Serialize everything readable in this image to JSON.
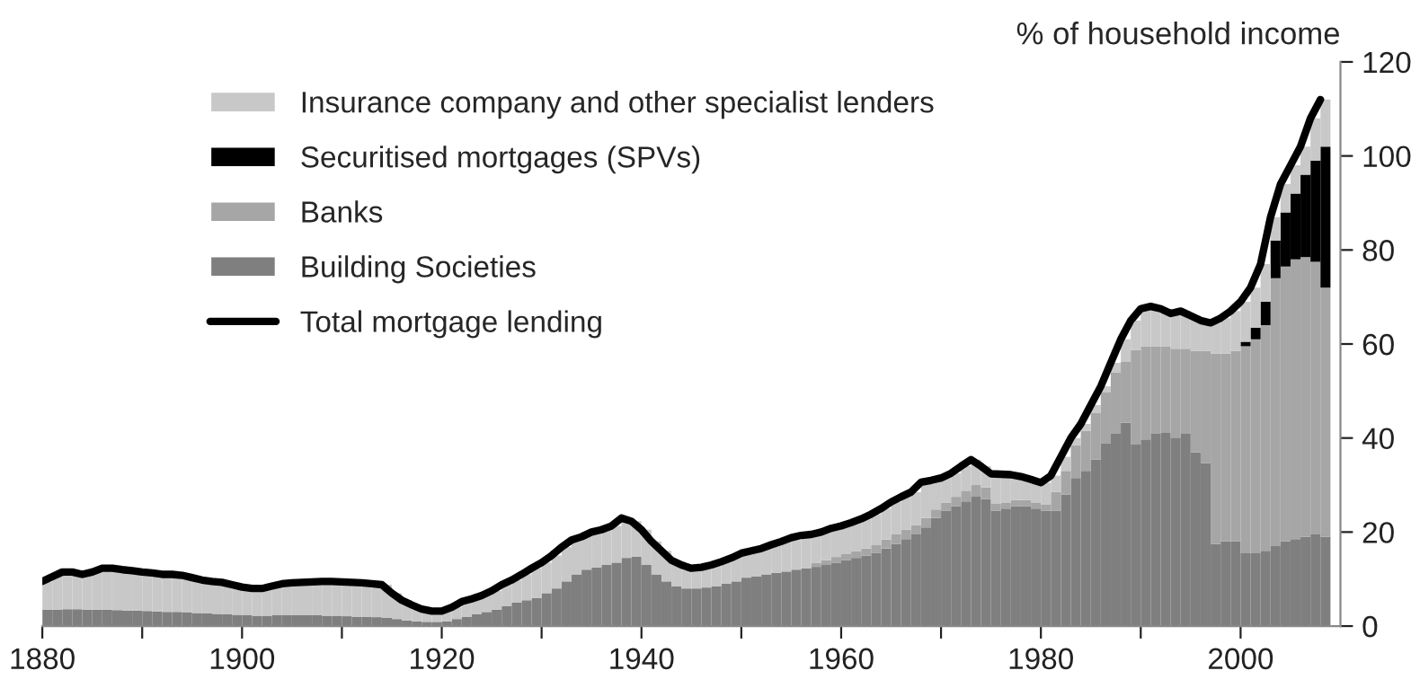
{
  "chart_data": {
    "type": "bar",
    "stacked": true,
    "ylabel": "% of household income",
    "x": [
      1880,
      1881,
      1882,
      1883,
      1884,
      1885,
      1886,
      1887,
      1888,
      1889,
      1890,
      1891,
      1892,
      1893,
      1894,
      1895,
      1896,
      1897,
      1898,
      1899,
      1900,
      1901,
      1902,
      1903,
      1904,
      1905,
      1906,
      1907,
      1908,
      1909,
      1910,
      1911,
      1912,
      1913,
      1914,
      1915,
      1916,
      1917,
      1918,
      1919,
      1920,
      1921,
      1922,
      1923,
      1924,
      1925,
      1926,
      1927,
      1928,
      1929,
      1930,
      1931,
      1932,
      1933,
      1934,
      1935,
      1936,
      1937,
      1938,
      1939,
      1940,
      1941,
      1942,
      1943,
      1944,
      1945,
      1946,
      1947,
      1948,
      1949,
      1950,
      1951,
      1952,
      1953,
      1954,
      1955,
      1956,
      1957,
      1958,
      1959,
      1960,
      1961,
      1962,
      1963,
      1964,
      1965,
      1966,
      1967,
      1968,
      1969,
      1970,
      1971,
      1972,
      1973,
      1974,
      1975,
      1976,
      1977,
      1978,
      1979,
      1980,
      1981,
      1982,
      1983,
      1984,
      1985,
      1986,
      1987,
      1988,
      1989,
      1990,
      1991,
      1992,
      1993,
      1994,
      1995,
      1996,
      1997,
      1998,
      1999,
      2000,
      2001,
      2002,
      2003,
      2004,
      2005,
      2006,
      2007,
      2008
    ],
    "series": [
      {
        "name": "Building Societies",
        "color": "#7f7f7f",
        "values": [
          3.5,
          3.5,
          3.6,
          3.6,
          3.5,
          3.5,
          3.5,
          3.4,
          3.3,
          3.3,
          3.2,
          3.1,
          3,
          3,
          2.9,
          2.8,
          2.7,
          2.6,
          2.5,
          2.4,
          2.3,
          2.2,
          2.2,
          2.3,
          2.3,
          2.3,
          2.3,
          2.3,
          2.2,
          2.2,
          2.1,
          2,
          2,
          1.9,
          1.8,
          1.5,
          1.2,
          1,
          0.9,
          0.9,
          1,
          1.5,
          2,
          2.5,
          3,
          3.5,
          4.3,
          5,
          5.5,
          6,
          7,
          8,
          9.5,
          11,
          12,
          12.5,
          13,
          13.5,
          14.5,
          14.8,
          13,
          11,
          9.5,
          8.5,
          8,
          8,
          8.2,
          8.5,
          9,
          9.5,
          10.3,
          10.6,
          11,
          11.3,
          11.6,
          12,
          12.3,
          12.6,
          13,
          13.5,
          14,
          14.5,
          15,
          15.5,
          16.5,
          17.5,
          18.5,
          19.5,
          21,
          23,
          24.5,
          25.5,
          26.5,
          27.5,
          27,
          24.5,
          25,
          25.5,
          25.5,
          25,
          24.5,
          24.5,
          28,
          31.5,
          33,
          35.4,
          38.8,
          40.9,
          43.3,
          38.6,
          39.7,
          40.9,
          41.1,
          40.1,
          40.9,
          37,
          34.7,
          17.5,
          18,
          18,
          15.5,
          15.5,
          16,
          17,
          18,
          18.5,
          19,
          19.5,
          19
        ]
      },
      {
        "name": "Banks",
        "color": "#a6a6a6",
        "values": [
          0,
          0,
          0,
          0,
          0,
          0,
          0,
          0,
          0,
          0,
          0,
          0,
          0,
          0,
          0,
          0,
          0,
          0,
          0,
          0,
          0,
          0,
          0,
          0,
          0,
          0,
          0,
          0,
          0,
          0,
          0,
          0,
          0,
          0,
          0,
          0,
          0,
          0,
          0,
          0,
          0,
          0,
          0,
          0,
          0,
          0,
          0,
          0,
          0,
          0,
          0,
          0,
          0,
          0,
          0,
          0,
          0,
          0,
          0,
          0,
          0,
          0,
          0,
          0,
          0,
          0,
          0,
          0,
          0,
          0,
          0,
          0,
          0,
          0,
          0,
          0,
          0,
          0.8,
          1,
          1.2,
          1.3,
          1.4,
          1.5,
          1.7,
          1.9,
          2,
          2,
          2,
          2,
          1.8,
          1.7,
          2,
          2.3,
          2.5,
          2.5,
          1.5,
          1.3,
          1.3,
          1.3,
          1.3,
          1.3,
          4,
          5,
          7,
          8.5,
          10,
          11,
          13,
          13,
          20.1,
          19.8,
          18.6,
          18.4,
          18.9,
          18.1,
          21.5,
          23.8,
          40.5,
          40,
          40.5,
          44,
          45.5,
          48,
          57,
          58.5,
          59.5,
          59.5,
          58,
          53
        ]
      },
      {
        "name": "Securitised mortgages (SPVs)",
        "color": "#000000",
        "values": [
          0,
          0,
          0,
          0,
          0,
          0,
          0,
          0,
          0,
          0,
          0,
          0,
          0,
          0,
          0,
          0,
          0,
          0,
          0,
          0,
          0,
          0,
          0,
          0,
          0,
          0,
          0,
          0,
          0,
          0,
          0,
          0,
          0,
          0,
          0,
          0,
          0,
          0,
          0,
          0,
          0,
          0,
          0,
          0,
          0,
          0,
          0,
          0,
          0,
          0,
          0,
          0,
          0,
          0,
          0,
          0,
          0,
          0,
          0,
          0,
          0,
          0,
          0,
          0,
          0,
          0,
          0,
          0,
          0,
          0,
          0,
          0,
          0,
          0,
          0,
          0,
          0,
          0,
          0,
          0,
          0,
          0,
          0,
          0,
          0,
          0,
          0,
          0,
          0,
          0,
          0,
          0,
          0,
          0,
          0,
          0,
          0,
          0,
          0,
          0,
          0,
          0,
          0,
          0,
          0,
          0,
          0,
          0,
          0,
          0,
          0,
          0,
          0,
          0,
          0,
          0,
          0,
          0,
          0,
          0,
          1,
          2.5,
          5,
          8,
          11.5,
          14,
          17.5,
          21.5,
          30
        ]
      },
      {
        "name": "Insurance company and other specialist lenders",
        "color": "#c8c8c8",
        "values": [
          6,
          7,
          7.9,
          7.9,
          7.5,
          8,
          8.8,
          8.9,
          8.7,
          8.5,
          8.3,
          8.2,
          8,
          8,
          7.9,
          7.5,
          7.1,
          6.9,
          6.8,
          6.4,
          6,
          5.8,
          5.8,
          6.2,
          6.7,
          6.9,
          7,
          7.1,
          7.3,
          7.3,
          7.3,
          7.3,
          7.2,
          7.1,
          7,
          5.5,
          4.3,
          3.5,
          2.7,
          2.3,
          2.2,
          2.5,
          3.2,
          3.3,
          3.5,
          4,
          4.5,
          4.8,
          5.5,
          6.3,
          6.5,
          7,
          7.3,
          7.3,
          7,
          7.5,
          7.5,
          7.8,
          8.5,
          7.5,
          7.5,
          7,
          6.5,
          5.5,
          5,
          4.3,
          4.3,
          4.5,
          4.7,
          5,
          5.2,
          5.4,
          5.5,
          6,
          6.4,
          6.3,
          6.4,
          6.1,
          6,
          6.1,
          6,
          6.1,
          6.3,
          6.6,
          6.6,
          6.9,
          7,
          7,
          7.6,
          6.2,
          5.3,
          5,
          5.2,
          5.4,
          4.5,
          6.4,
          6,
          5.4,
          5,
          4.9,
          4.7,
          3.5,
          3,
          1.5,
          1.5,
          1.6,
          1.2,
          2.1,
          4.7,
          6.3,
          8,
          8.5,
          8,
          7.5,
          8,
          7.5,
          6.5,
          6.5,
          7.5,
          8.5,
          8.5,
          8.5,
          8,
          5,
          6,
          6,
          6,
          9,
          10
        ]
      },
      {
        "name": "Total mortgage lending",
        "type": "line",
        "color": "#000000",
        "values": [
          9.5,
          10.5,
          11.5,
          11.5,
          11,
          11.5,
          12.3,
          12.3,
          12,
          11.8,
          11.5,
          11.3,
          11,
          11,
          10.8,
          10.3,
          9.8,
          9.5,
          9.3,
          8.8,
          8.3,
          8,
          8,
          8.5,
          9,
          9.2,
          9.3,
          9.4,
          9.5,
          9.5,
          9.4,
          9.3,
          9.2,
          9,
          8.8,
          7,
          5.5,
          4.5,
          3.6,
          3.2,
          3.2,
          4,
          5.2,
          5.8,
          6.5,
          7.5,
          8.8,
          9.8,
          11,
          12.3,
          13.5,
          15,
          16.8,
          18.3,
          19,
          20,
          20.5,
          21.3,
          23,
          22.3,
          20.5,
          18,
          16,
          14,
          13,
          12.3,
          12.5,
          13,
          13.7,
          14.5,
          15.5,
          16,
          16.5,
          17.3,
          18,
          18.8,
          19.3,
          19.5,
          20,
          20.8,
          21.3,
          22,
          22.8,
          23.8,
          25,
          26.4,
          27.5,
          28.5,
          30.6,
          31,
          31.5,
          32.5,
          34,
          35.4,
          34,
          32.4,
          32.3,
          32.2,
          31.8,
          31.2,
          30.5,
          32,
          36,
          40,
          43,
          47,
          51,
          56,
          61,
          65,
          67.5,
          68,
          67.5,
          66.5,
          67,
          66,
          65,
          64.5,
          65.5,
          67,
          69,
          72,
          77,
          87,
          94,
          98,
          102,
          108,
          112
        ]
      }
    ],
    "xlim": [
      1880,
      2010
    ],
    "xticks": [
      1880,
      {
        "value": 1890,
        "label": null
      },
      1900,
      {
        "value": 1910,
        "label": null
      },
      1920,
      {
        "value": 1930,
        "label": null
      },
      1940,
      {
        "value": 1950,
        "label": null
      },
      1960,
      {
        "value": 1970,
        "label": null
      },
      1980,
      {
        "value": 1990,
        "label": null
      },
      2000
    ],
    "ylim": [
      0,
      120
    ],
    "yticks": [
      0,
      20,
      40,
      60,
      80,
      100,
      120
    ],
    "legend": "top left",
    "grid": false,
    "line_style": "solid",
    "marker": "none"
  }
}
